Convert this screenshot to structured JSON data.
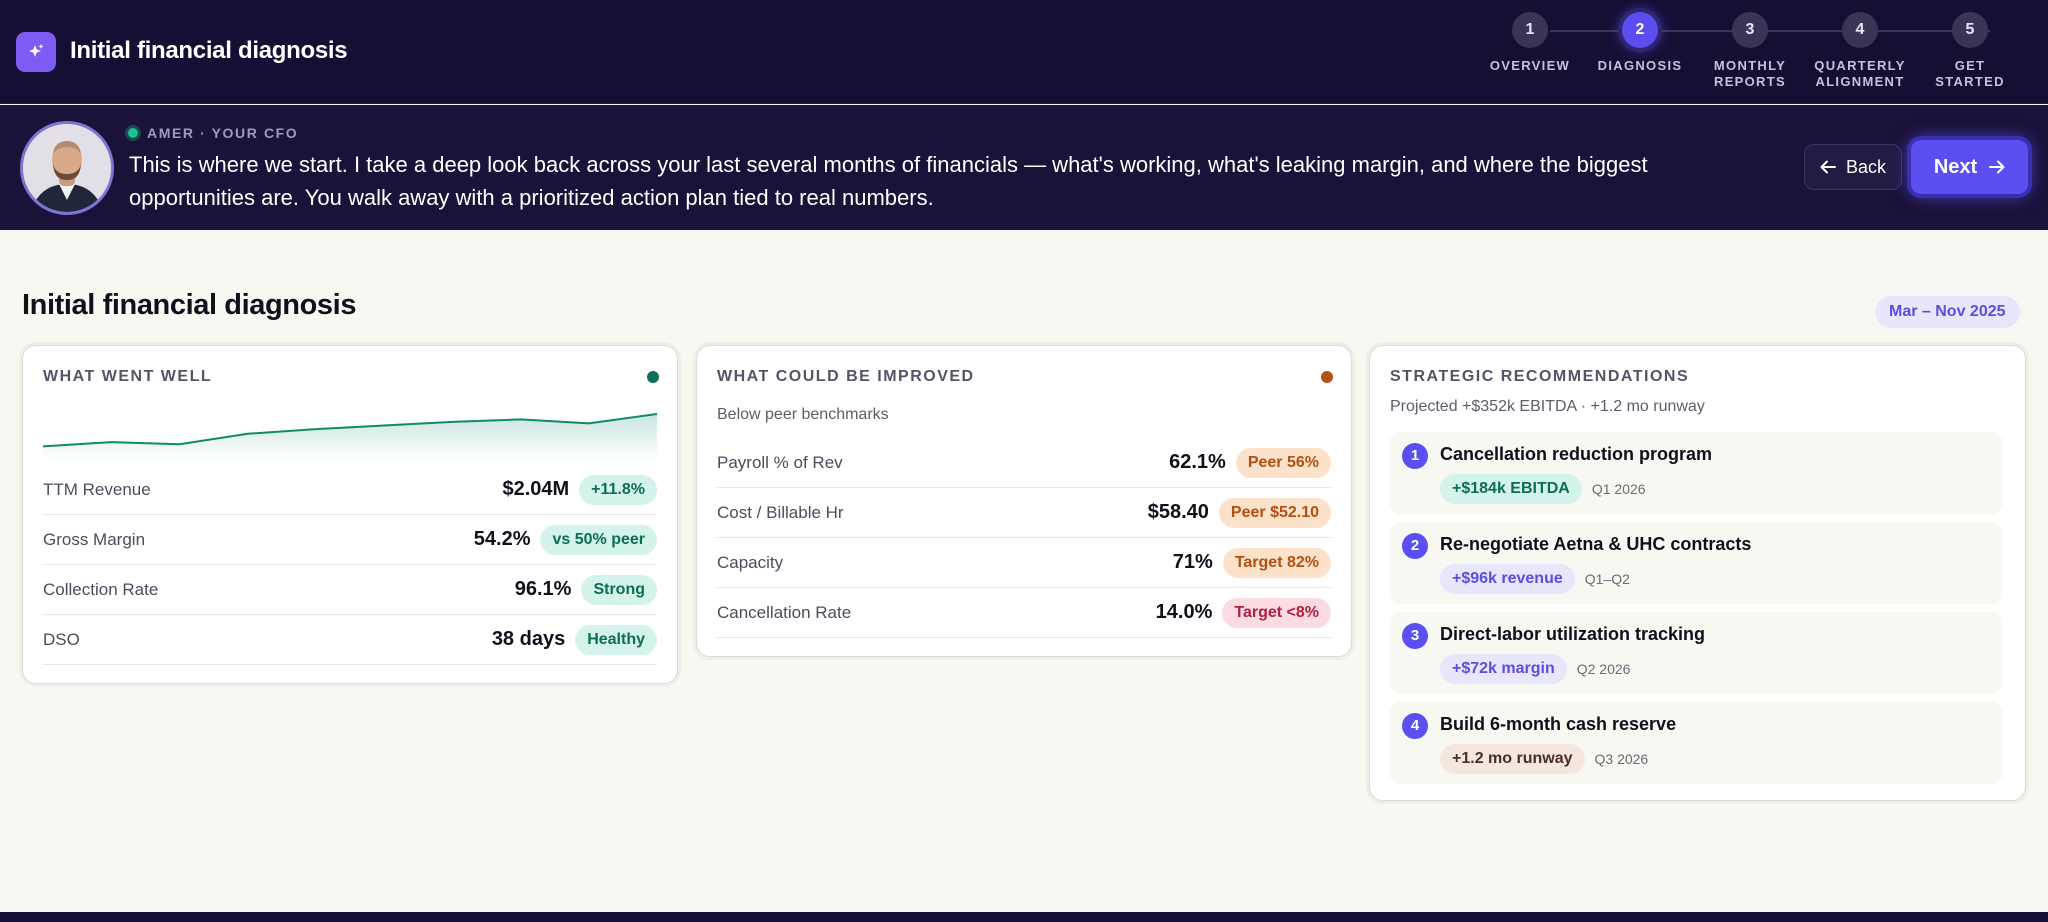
{
  "app": {
    "title": "Initial financial diagnosis"
  },
  "stepper": [
    {
      "num": "1",
      "label": "OVERVIEW",
      "active": false
    },
    {
      "num": "2",
      "label": "DIAGNOSIS",
      "active": true
    },
    {
      "num": "3",
      "label": "MONTHLY REPORTS",
      "active": false
    },
    {
      "num": "4",
      "label": "QUARTERLY ALIGNMENT",
      "active": false
    },
    {
      "num": "5",
      "label": "GET STARTED",
      "active": false
    }
  ],
  "cfo": {
    "label": "AMER · YOUR CFO",
    "message": "This is where we start. I take a deep look back across your last several months of financials — what's working, what's leaking margin, and where the biggest opportunities are. You walk away with a prioritized action plan tied to real numbers."
  },
  "nav": {
    "back_label": "Back",
    "next_label": "Next"
  },
  "page": {
    "title": "Initial financial diagnosis",
    "date_range": "Mar – Nov 2025"
  },
  "went_well": {
    "heading": "WHAT WENT WELL",
    "dot_color": "#0f6e58",
    "trend": [
      0.1,
      0.22,
      0.16,
      0.45,
      0.58,
      0.68,
      0.78,
      0.85,
      0.74,
      1.0
    ],
    "metrics": [
      {
        "label": "TTM Revenue",
        "value": "$2.04M",
        "badge": "+11.8%",
        "tone": "green"
      },
      {
        "label": "Gross Margin",
        "value": "54.2%",
        "badge": "vs 50% peer",
        "tone": "green"
      },
      {
        "label": "Collection Rate",
        "value": "96.1%",
        "badge": "Strong",
        "tone": "green"
      },
      {
        "label": "DSO",
        "value": "38 days",
        "badge": "Healthy",
        "tone": "green"
      }
    ]
  },
  "improve": {
    "heading": "WHAT COULD BE IMPROVED",
    "dot_color": "#b5501a",
    "subtitle": "Below peer benchmarks",
    "metrics": [
      {
        "label": "Payroll % of Rev",
        "value": "62.1%",
        "badge": "Peer 56%",
        "tone": "orange"
      },
      {
        "label": "Cost / Billable Hr",
        "value": "$58.40",
        "badge": "Peer $52.10",
        "tone": "orange"
      },
      {
        "label": "Capacity",
        "value": "71%",
        "badge": "Target 82%",
        "tone": "orange"
      },
      {
        "label": "Cancellation Rate",
        "value": "14.0%",
        "badge": "Target <8%",
        "tone": "red"
      }
    ]
  },
  "recs": {
    "heading": "STRATEGIC RECOMMENDATIONS",
    "subtitle": "Projected +$352k EBITDA · +1.2 mo runway",
    "items": [
      {
        "num": "1",
        "title": "Cancellation reduction program",
        "impact": "+$184k EBITDA",
        "when": "Q1 2026",
        "bg": "#d4f3ea",
        "fg": "#0c6e52"
      },
      {
        "num": "2",
        "title": "Re-negotiate Aetna & UHC contracts",
        "impact": "+$96k revenue",
        "when": "Q1–Q2",
        "bg": "#e8e6fb",
        "fg": "#5a4ee0"
      },
      {
        "num": "3",
        "title": "Direct-labor utilization tracking",
        "impact": "+$72k margin",
        "when": "Q2 2026",
        "bg": "#e8e6fb",
        "fg": "#5a4ee0"
      },
      {
        "num": "4",
        "title": "Build 6-month cash reserve",
        "impact": "+1.2 mo runway",
        "when": "Q3 2026",
        "bg": "#f5e6e0",
        "fg": "#4a2e22"
      }
    ]
  }
}
